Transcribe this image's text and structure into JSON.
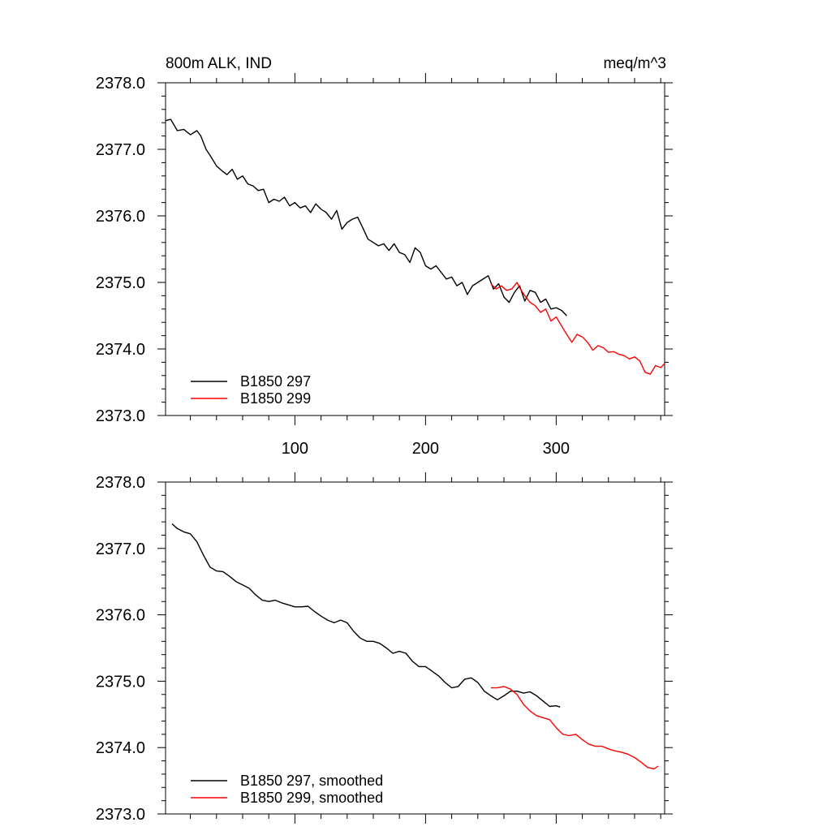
{
  "chart_data": [
    {
      "type": "line",
      "title_left": "800m ALK, IND",
      "title_right": "meq/m^3",
      "xlim": [
        1,
        383
      ],
      "ylim": [
        2373.0,
        2378.0
      ],
      "x_ticks": [
        100,
        200,
        300
      ],
      "x_tick_labels": [
        "100",
        "200",
        "300"
      ],
      "y_ticks": [
        2373.0,
        2374.0,
        2375.0,
        2376.0,
        2377.0,
        2378.0
      ],
      "y_tick_labels": [
        "2373.0",
        "2374.0",
        "2375.0",
        "2376.0",
        "2377.0",
        "2378.0"
      ],
      "legend_position": "bottom-left",
      "series": [
        {
          "name": "B1850 297",
          "color": "#000000",
          "x": [
            1,
            5,
            10,
            15,
            20,
            25,
            28,
            32,
            36,
            40,
            44,
            48,
            52,
            56,
            60,
            64,
            68,
            72,
            76,
            80,
            84,
            88,
            92,
            96,
            100,
            104,
            108,
            112,
            116,
            120,
            124,
            128,
            132,
            136,
            140,
            144,
            148,
            152,
            156,
            160,
            164,
            168,
            172,
            176,
            180,
            184,
            188,
            192,
            196,
            200,
            204,
            208,
            212,
            216,
            220,
            224,
            228,
            232,
            236,
            240,
            244,
            248,
            252,
            256,
            260,
            264,
            268,
            272,
            276,
            280,
            284,
            288,
            292,
            296,
            300,
            304,
            308
          ],
          "y": [
            2377.43,
            2377.45,
            2377.28,
            2377.3,
            2377.22,
            2377.28,
            2377.2,
            2377.0,
            2376.88,
            2376.75,
            2376.68,
            2376.62,
            2376.7,
            2376.55,
            2376.6,
            2376.48,
            2376.45,
            2376.38,
            2376.4,
            2376.2,
            2376.25,
            2376.22,
            2376.28,
            2376.15,
            2376.2,
            2376.12,
            2376.15,
            2376.05,
            2376.18,
            2376.1,
            2376.05,
            2375.95,
            2376.08,
            2375.8,
            2375.9,
            2375.95,
            2375.98,
            2375.82,
            2375.65,
            2375.6,
            2375.55,
            2375.58,
            2375.48,
            2375.58,
            2375.45,
            2375.42,
            2375.3,
            2375.52,
            2375.45,
            2375.25,
            2375.2,
            2375.25,
            2375.15,
            2375.05,
            2375.08,
            2374.95,
            2375.0,
            2374.82,
            2374.95,
            2375.0,
            2375.05,
            2375.1,
            2374.9,
            2374.98,
            2374.78,
            2374.7,
            2374.85,
            2374.95,
            2374.72,
            2374.88,
            2374.85,
            2374.7,
            2374.75,
            2374.6,
            2374.62,
            2374.58,
            2374.5
          ]
        },
        {
          "name": "B1850 299",
          "color": "#ff0000",
          "x": [
            250,
            254,
            258,
            262,
            266,
            270,
            272,
            276,
            280,
            284,
            288,
            292,
            296,
            300,
            304,
            308,
            312,
            316,
            320,
            324,
            328,
            332,
            336,
            340,
            344,
            348,
            352,
            356,
            360,
            364,
            368,
            372,
            376,
            380,
            383
          ],
          "y": [
            2374.98,
            2374.9,
            2374.95,
            2374.88,
            2374.9,
            2375.0,
            2374.92,
            2374.8,
            2374.7,
            2374.65,
            2374.55,
            2374.6,
            2374.42,
            2374.48,
            2374.35,
            2374.22,
            2374.1,
            2374.22,
            2374.18,
            2374.1,
            2373.98,
            2374.05,
            2374.02,
            2373.95,
            2373.96,
            2373.92,
            2373.9,
            2373.85,
            2373.88,
            2373.82,
            2373.65,
            2373.62,
            2373.75,
            2373.72,
            2373.78
          ]
        }
      ]
    },
    {
      "type": "line",
      "xlim": [
        1,
        383
      ],
      "ylim": [
        2373.0,
        2378.0
      ],
      "y_ticks": [
        2373.0,
        2374.0,
        2375.0,
        2376.0,
        2377.0,
        2378.0
      ],
      "y_tick_labels": [
        "2373.0",
        "2374.0",
        "2375.0",
        "2376.0",
        "2377.0",
        "2378.0"
      ],
      "legend_position": "bottom-left",
      "series": [
        {
          "name": "B1850 297, smoothed",
          "color": "#000000",
          "x": [
            6,
            10,
            15,
            20,
            25,
            30,
            35,
            40,
            45,
            50,
            55,
            60,
            65,
            70,
            75,
            80,
            85,
            90,
            95,
            100,
            105,
            110,
            115,
            120,
            125,
            130,
            135,
            140,
            145,
            150,
            155,
            160,
            165,
            170,
            175,
            180,
            185,
            190,
            195,
            200,
            205,
            210,
            215,
            220,
            225,
            230,
            235,
            240,
            245,
            250,
            255,
            260,
            265,
            270,
            275,
            280,
            285,
            290,
            295,
            300,
            303
          ],
          "y": [
            2377.37,
            2377.3,
            2377.25,
            2377.22,
            2377.1,
            2376.9,
            2376.72,
            2376.66,
            2376.65,
            2376.58,
            2376.5,
            2376.45,
            2376.4,
            2376.3,
            2376.22,
            2376.2,
            2376.22,
            2376.18,
            2376.15,
            2376.12,
            2376.12,
            2376.13,
            2376.05,
            2375.98,
            2375.92,
            2375.88,
            2375.92,
            2375.88,
            2375.75,
            2375.65,
            2375.6,
            2375.6,
            2375.57,
            2375.5,
            2375.42,
            2375.45,
            2375.42,
            2375.3,
            2375.22,
            2375.22,
            2375.15,
            2375.08,
            2374.98,
            2374.9,
            2374.92,
            2375.03,
            2375.05,
            2374.98,
            2374.85,
            2374.78,
            2374.72,
            2374.78,
            2374.85,
            2374.85,
            2374.82,
            2374.84,
            2374.78,
            2374.7,
            2374.62,
            2374.63,
            2374.61
          ]
        },
        {
          "name": "B1850 299, smoothed",
          "color": "#ff0000",
          "x": [
            250,
            255,
            260,
            265,
            270,
            275,
            280,
            285,
            290,
            295,
            300,
            305,
            310,
            315,
            320,
            325,
            330,
            335,
            340,
            345,
            350,
            355,
            360,
            365,
            370,
            375,
            378
          ],
          "y": [
            2374.9,
            2374.9,
            2374.92,
            2374.88,
            2374.8,
            2374.65,
            2374.55,
            2374.48,
            2374.45,
            2374.42,
            2374.3,
            2374.2,
            2374.18,
            2374.2,
            2374.12,
            2374.05,
            2374.02,
            2374.02,
            2373.98,
            2373.95,
            2373.93,
            2373.9,
            2373.85,
            2373.78,
            2373.7,
            2373.68,
            2373.72
          ]
        }
      ]
    }
  ]
}
